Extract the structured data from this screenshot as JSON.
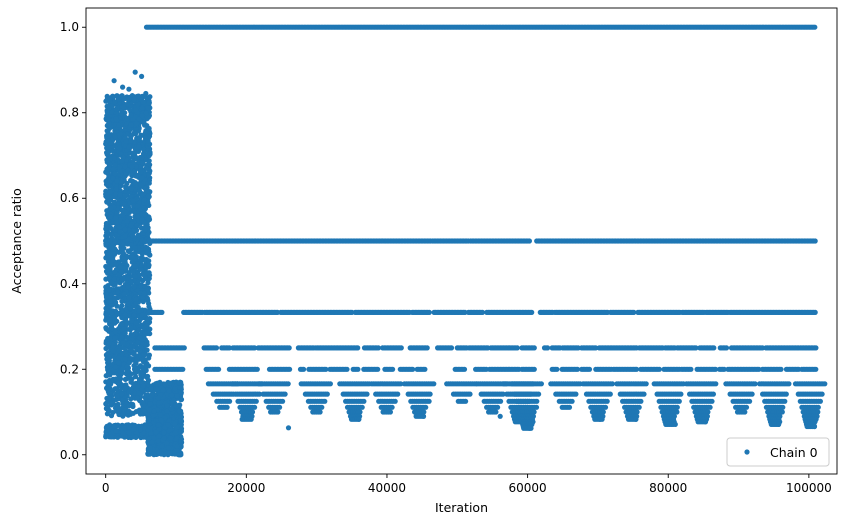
{
  "chart_data": {
    "type": "scatter",
    "title": "",
    "xlabel": "Iteration",
    "ylabel": "Acceptance ratio",
    "xlim": [
      -2800,
      104000
    ],
    "ylim": [
      -0.045,
      1.045
    ],
    "xticks": [
      0,
      20000,
      40000,
      60000,
      80000,
      100000
    ],
    "xtick_labels": [
      "0",
      "20000",
      "40000",
      "60000",
      "80000",
      "100000"
    ],
    "yticks": [
      0.0,
      0.2,
      0.4,
      0.6,
      0.8,
      1.0
    ],
    "ytick_labels": [
      "0.0",
      "0.2",
      "0.4",
      "0.6",
      "0.8",
      "1.0"
    ],
    "grid": false,
    "legend_position": "bottom-right",
    "series": [
      {
        "name": "Chain 0",
        "color": "#1f77b4",
        "marker": "circle",
        "bands": [
          {
            "y": 1.0,
            "segments": [
              [
                5800,
                101000
              ]
            ]
          },
          {
            "y": 0.5,
            "segments": [
              [
                0,
                46200
              ],
              [
                46500,
                51600
              ],
              [
                51900,
                60300
              ],
              [
                61300,
                101000
              ]
            ]
          },
          {
            "y": 0.333,
            "segments": [
              [
                5800,
                8000
              ],
              [
                11100,
                13800
              ],
              [
                14100,
                24600
              ],
              [
                24900,
                35200
              ],
              [
                35500,
                43300
              ],
              [
                43600,
                46100
              ],
              [
                46700,
                51200
              ],
              [
                51600,
                53700
              ],
              [
                54200,
                60700
              ],
              [
                61800,
                63600
              ],
              [
                63900,
                71500
              ],
              [
                71800,
                75300
              ],
              [
                75700,
                81700
              ],
              [
                82000,
                85100
              ],
              [
                85400,
                88500
              ],
              [
                88800,
                101000
              ]
            ]
          },
          {
            "y": 0.25,
            "segments": [
              [
                7000,
                11200
              ],
              [
                14000,
                15900
              ],
              [
                16500,
                17600
              ],
              [
                18100,
                21300
              ],
              [
                21700,
                26300
              ],
              [
                27400,
                29800
              ],
              [
                29900,
                36000
              ],
              [
                36800,
                38900
              ],
              [
                39400,
                42200
              ],
              [
                43300,
                45800
              ],
              [
                47200,
                49300
              ],
              [
                50000,
                51500
              ],
              [
                51700,
                54500
              ],
              [
                54800,
                58600
              ],
              [
                59200,
                61100
              ],
              [
                62400,
                62900
              ],
              [
                63500,
                64700
              ],
              [
                65000,
                67200
              ],
              [
                67700,
                69800
              ],
              [
                70200,
                75600
              ],
              [
                75900,
                79200
              ],
              [
                79600,
                81000
              ],
              [
                81300,
                84100
              ],
              [
                84500,
                86500
              ],
              [
                87400,
                88300
              ],
              [
                89000,
                93600
              ],
              [
                93900,
                96800
              ],
              [
                97000,
                98600
              ],
              [
                98800,
                101000
              ]
            ]
          },
          {
            "y": 0.2,
            "segments": [
              [
                7000,
                11000
              ],
              [
                14300,
                16100
              ],
              [
                17600,
                21600
              ],
              [
                23300,
                26200
              ],
              [
                27700,
                28300
              ],
              [
                28900,
                31400
              ],
              [
                31900,
                34500
              ],
              [
                35200,
                35900
              ],
              [
                36700,
                38700
              ],
              [
                39700,
                41000
              ],
              [
                41900,
                43800
              ],
              [
                44300,
                45400
              ],
              [
                49700,
                51100
              ],
              [
                52600,
                54300
              ],
              [
                54600,
                58800
              ],
              [
                59200,
                61100
              ],
              [
                63500,
                64200
              ],
              [
                64900,
                67200
              ],
              [
                67700,
                68900
              ],
              [
                69700,
                71900
              ],
              [
                72200,
                75600
              ],
              [
                76100,
                78900
              ],
              [
                79400,
                81700
              ],
              [
                81900,
                83300
              ],
              [
                84100,
                86900
              ],
              [
                87300,
                88000
              ],
              [
                88500,
                93100
              ],
              [
                93400,
                96200
              ],
              [
                96800,
                98600
              ],
              [
                99000,
                101000
              ]
            ]
          }
        ],
        "clusters": [
          {
            "x": [
              0,
              6300
            ],
            "y": [
              0.09,
              0.84
            ],
            "density": "dense"
          },
          {
            "x": [
              6000,
              10800
            ],
            "y": [
              0.0,
              0.17
            ],
            "density": "dense"
          }
        ],
        "outliers": [
          {
            "x": 1200,
            "y": 0.875
          },
          {
            "x": 4200,
            "y": 0.895
          },
          {
            "x": 5100,
            "y": 0.885
          },
          {
            "x": 5700,
            "y": 0.845
          },
          {
            "x": 2400,
            "y": 0.86
          },
          {
            "x": 3300,
            "y": 0.855
          },
          {
            "x": 10600,
            "y": 0.0
          },
          {
            "x": 10400,
            "y": 0.0
          },
          {
            "x": 19400,
            "y": 0.083
          },
          {
            "x": 26000,
            "y": 0.063
          },
          {
            "x": 36000,
            "y": 0.083
          },
          {
            "x": 45200,
            "y": 0.09
          },
          {
            "x": 60300,
            "y": 0.062
          },
          {
            "x": 56100,
            "y": 0.09
          },
          {
            "x": 70300,
            "y": 0.083
          },
          {
            "x": 75400,
            "y": 0.083
          },
          {
            "x": 81000,
            "y": 0.071
          },
          {
            "x": 85300,
            "y": 0.077
          },
          {
            "x": 95700,
            "y": 0.071
          },
          {
            "x": 100800,
            "y": 0.066
          }
        ],
        "stacks": [
          {
            "center": 16800,
            "top": 0.166,
            "bottom": 0.11
          },
          {
            "center": 20200,
            "top": 0.166,
            "bottom": 0.083
          },
          {
            "center": 24000,
            "top": 0.166,
            "bottom": 0.1
          },
          {
            "center": 30000,
            "top": 0.166,
            "bottom": 0.1
          },
          {
            "center": 35500,
            "top": 0.166,
            "bottom": 0.083
          },
          {
            "center": 40000,
            "top": 0.166,
            "bottom": 0.1
          },
          {
            "center": 44700,
            "top": 0.166,
            "bottom": 0.09
          },
          {
            "center": 50700,
            "top": 0.166,
            "bottom": 0.125
          },
          {
            "center": 55000,
            "top": 0.166,
            "bottom": 0.1
          },
          {
            "center": 58800,
            "top": 0.166,
            "bottom": 0.077
          },
          {
            "center": 60000,
            "top": 0.166,
            "bottom": 0.062
          },
          {
            "center": 65500,
            "top": 0.166,
            "bottom": 0.11
          },
          {
            "center": 70100,
            "top": 0.166,
            "bottom": 0.083
          },
          {
            "center": 74900,
            "top": 0.166,
            "bottom": 0.083
          },
          {
            "center": 80200,
            "top": 0.166,
            "bottom": 0.071
          },
          {
            "center": 84800,
            "top": 0.166,
            "bottom": 0.077
          },
          {
            "center": 90400,
            "top": 0.166,
            "bottom": 0.1
          },
          {
            "center": 95200,
            "top": 0.166,
            "bottom": 0.071
          },
          {
            "center": 100300,
            "top": 0.166,
            "bottom": 0.066
          }
        ]
      }
    ]
  }
}
